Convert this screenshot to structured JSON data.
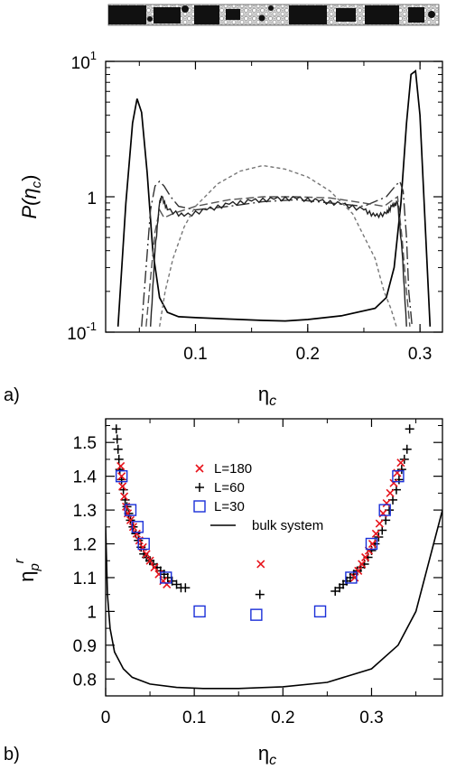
{
  "chart_data": [
    {
      "panel": "a)",
      "type": "line",
      "xlabel_main": "η",
      "xlabel_sub": "c",
      "ylabel": "P(η",
      "ylabel_sub": "c",
      "ylabel_close": ")",
      "yscale": "log",
      "xlim": [
        0.02,
        0.32
      ],
      "ylim": [
        0.1,
        10
      ],
      "xticks": [
        0.1,
        0.2,
        0.3
      ],
      "xtick_labels": [
        "0.1",
        "0.2",
        "0.3"
      ],
      "yticks": [
        0.1,
        1,
        10
      ],
      "ytick_labels": [
        {
          "base": "10",
          "exp": "-1"
        },
        {
          "base": "1",
          "exp": ""
        },
        {
          "base": "10",
          "exp": "1"
        }
      ],
      "grid": false,
      "series": [
        {
          "style": "solid",
          "color": "#000000",
          "x": [
            0.031,
            0.038,
            0.044,
            0.048,
            0.052,
            0.057,
            0.062,
            0.068,
            0.075,
            0.085,
            0.1,
            0.13,
            0.16,
            0.18,
            0.2,
            0.23,
            0.26,
            0.27,
            0.277,
            0.283,
            0.288,
            0.292,
            0.296,
            0.3,
            0.304,
            0.309
          ],
          "y": [
            0.11,
            0.9,
            3.5,
            5.3,
            4.2,
            1.5,
            0.4,
            0.18,
            0.14,
            0.13,
            0.128,
            0.125,
            0.122,
            0.121,
            0.124,
            0.132,
            0.15,
            0.18,
            0.3,
            0.9,
            3.5,
            8.0,
            8.5,
            4.0,
            0.8,
            0.11
          ]
        },
        {
          "style": "longdash",
          "color": "#333333",
          "x": [
            0.052,
            0.056,
            0.06,
            0.064,
            0.068,
            0.072,
            0.078,
            0.085,
            0.1,
            0.13,
            0.16,
            0.19,
            0.22,
            0.25,
            0.27,
            0.278,
            0.282,
            0.285,
            0.288,
            0.29,
            0.293
          ],
          "y": [
            0.11,
            0.3,
            0.8,
            1.2,
            1.3,
            1.2,
            1.0,
            0.85,
            0.8,
            0.85,
            0.92,
            0.95,
            0.9,
            0.85,
            1.0,
            1.2,
            1.3,
            1.1,
            0.5,
            0.2,
            0.11
          ]
        },
        {
          "style": "dash",
          "color": "#555555",
          "x": [
            0.056,
            0.06,
            0.064,
            0.068,
            0.072,
            0.08,
            0.1,
            0.13,
            0.16,
            0.19,
            0.22,
            0.25,
            0.268,
            0.276,
            0.28,
            0.284,
            0.288,
            0.291
          ],
          "y": [
            0.11,
            0.25,
            0.55,
            0.8,
            0.7,
            0.75,
            0.85,
            0.95,
            1.0,
            1.0,
            0.98,
            0.9,
            0.85,
            0.95,
            1.0,
            0.5,
            0.2,
            0.11
          ]
        },
        {
          "style": "jagged",
          "color": "#222222",
          "x": [
            0.06,
            0.064,
            0.068,
            0.07,
            0.075,
            0.09,
            0.11,
            0.13,
            0.15,
            0.17,
            0.19,
            0.21,
            0.23,
            0.25,
            0.26,
            0.27,
            0.275,
            0.28,
            0.284,
            0.288
          ],
          "y": [
            0.11,
            0.4,
            0.9,
            1.0,
            0.8,
            0.72,
            0.8,
            0.88,
            0.93,
            0.96,
            0.97,
            0.93,
            0.88,
            0.8,
            0.72,
            0.75,
            0.85,
            0.9,
            0.4,
            0.11
          ]
        },
        {
          "style": "shortdash",
          "color": "#777777",
          "x": [
            0.068,
            0.073,
            0.08,
            0.09,
            0.1,
            0.12,
            0.14,
            0.16,
            0.18,
            0.2,
            0.22,
            0.24,
            0.26,
            0.268,
            0.274,
            0.279
          ],
          "y": [
            0.11,
            0.2,
            0.35,
            0.6,
            0.85,
            1.25,
            1.55,
            1.7,
            1.6,
            1.4,
            1.1,
            0.75,
            0.35,
            0.2,
            0.15,
            0.11
          ]
        }
      ]
    },
    {
      "panel": "b)",
      "type": "scatter",
      "xlabel_main": "η",
      "xlabel_sub": "c",
      "ylabel_main": "η",
      "ylabel_sub": "p",
      "ylabel_sup": "r",
      "xlim": [
        0,
        0.38
      ],
      "ylim": [
        0.75,
        1.57
      ],
      "xticks": [
        0,
        0.1,
        0.2,
        0.3
      ],
      "xtick_labels": [
        "0",
        "0.1",
        "0.2",
        "0.3"
      ],
      "yticks": [
        0.8,
        0.9,
        1.0,
        1.1,
        1.2,
        1.3,
        1.4,
        1.5
      ],
      "ytick_labels": [
        "0.8",
        "0.9",
        "1",
        "1.1",
        "1.2",
        "1.3",
        "1.4",
        "1.5"
      ],
      "grid": false,
      "legend_position": "top-center",
      "series": [
        {
          "name": "L=180",
          "marker": "x",
          "color": "#e8141c",
          "x": [
            0.017,
            0.018,
            0.019,
            0.021,
            0.023,
            0.025,
            0.028,
            0.031,
            0.035,
            0.038,
            0.042,
            0.046,
            0.05,
            0.055,
            0.06,
            0.065,
            0.069,
            0.175,
            0.281,
            0.285,
            0.289,
            0.293,
            0.297,
            0.301,
            0.305,
            0.309,
            0.313,
            0.317,
            0.321,
            0.325,
            0.329,
            0.333
          ],
          "y": [
            1.43,
            1.4,
            1.37,
            1.34,
            1.31,
            1.29,
            1.27,
            1.25,
            1.23,
            1.21,
            1.19,
            1.17,
            1.15,
            1.13,
            1.11,
            1.09,
            1.08,
            1.14,
            1.1,
            1.12,
            1.14,
            1.16,
            1.18,
            1.2,
            1.23,
            1.26,
            1.29,
            1.32,
            1.35,
            1.38,
            1.41,
            1.44
          ]
        },
        {
          "name": "L=60",
          "marker": "plus",
          "color": "#000000",
          "x": [
            0.012,
            0.013,
            0.014,
            0.015,
            0.016,
            0.018,
            0.02,
            0.022,
            0.024,
            0.026,
            0.028,
            0.031,
            0.034,
            0.037,
            0.04,
            0.043,
            0.046,
            0.05,
            0.054,
            0.058,
            0.062,
            0.066,
            0.07,
            0.075,
            0.08,
            0.085,
            0.09,
            0.174,
            0.259,
            0.264,
            0.268,
            0.272,
            0.276,
            0.28,
            0.284,
            0.288,
            0.292,
            0.296,
            0.3,
            0.304,
            0.308,
            0.312,
            0.316,
            0.32,
            0.324,
            0.328,
            0.331,
            0.334,
            0.337,
            0.34,
            0.343
          ],
          "y": [
            1.54,
            1.51,
            1.48,
            1.45,
            1.42,
            1.39,
            1.36,
            1.33,
            1.31,
            1.29,
            1.27,
            1.25,
            1.23,
            1.21,
            1.19,
            1.17,
            1.16,
            1.15,
            1.14,
            1.13,
            1.12,
            1.11,
            1.1,
            1.09,
            1.08,
            1.07,
            1.07,
            1.05,
            1.06,
            1.07,
            1.08,
            1.09,
            1.1,
            1.11,
            1.12,
            1.13,
            1.14,
            1.16,
            1.18,
            1.2,
            1.22,
            1.24,
            1.27,
            1.3,
            1.33,
            1.36,
            1.39,
            1.42,
            1.45,
            1.48,
            1.54
          ]
        },
        {
          "name": "L=30",
          "marker": "square",
          "color": "#1a2fd8",
          "x": [
            0.018,
            0.028,
            0.036,
            0.043,
            0.068,
            0.106,
            0.17,
            0.242,
            0.277,
            0.3,
            0.315,
            0.33
          ],
          "y": [
            1.4,
            1.3,
            1.25,
            1.2,
            1.1,
            1.0,
            0.99,
            1.0,
            1.1,
            1.2,
            1.3,
            1.4
          ]
        },
        {
          "name": "bulk system",
          "marker": "line",
          "color": "#000000",
          "x": [
            0.0,
            0.002,
            0.005,
            0.01,
            0.02,
            0.03,
            0.05,
            0.08,
            0.11,
            0.15,
            0.2,
            0.25,
            0.3,
            0.33,
            0.35,
            0.36,
            0.37,
            0.38
          ],
          "y": [
            1.25,
            1.05,
            0.95,
            0.88,
            0.83,
            0.805,
            0.785,
            0.775,
            0.772,
            0.772,
            0.777,
            0.79,
            0.83,
            0.9,
            1.0,
            1.1,
            1.2,
            1.3
          ]
        }
      ]
    }
  ]
}
